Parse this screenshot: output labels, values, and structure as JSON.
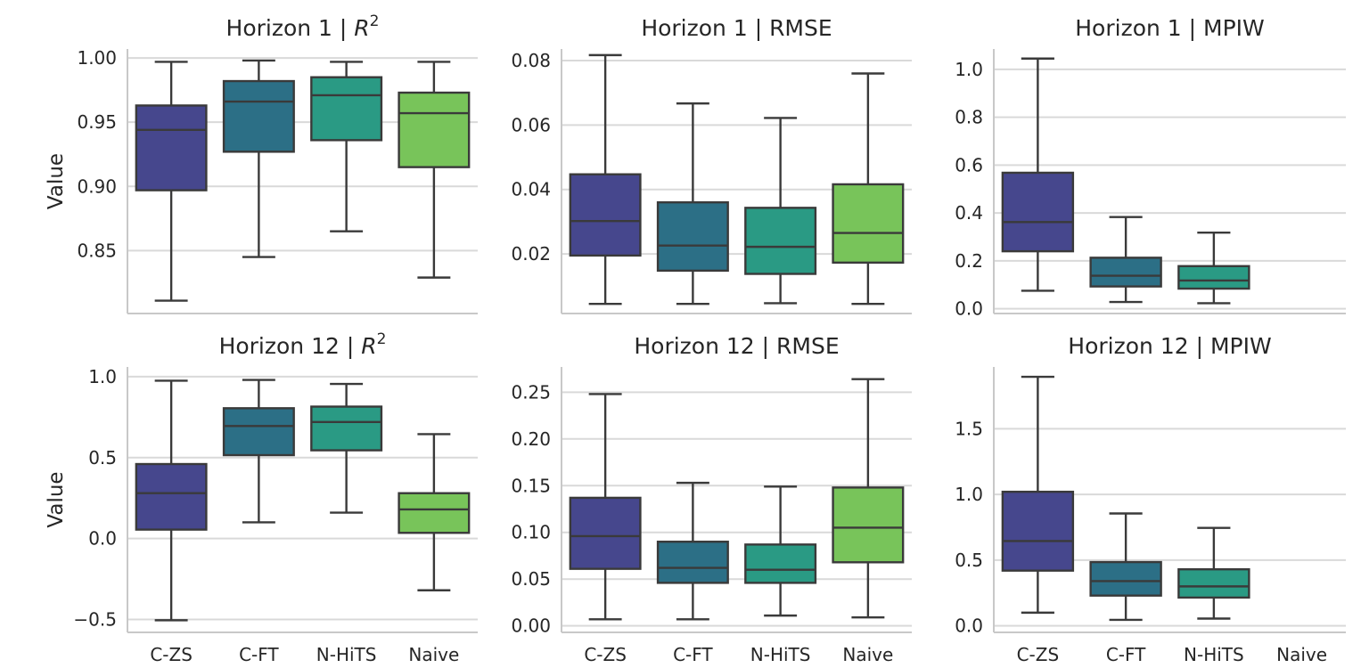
{
  "figure": {
    "categories": [
      "C-ZS",
      "C-FT",
      "N-HiTS",
      "Naive"
    ],
    "colors": [
      "#46478d",
      "#2c6f86",
      "#2a9a84",
      "#78c45a"
    ],
    "ylabel": "Value"
  },
  "chart_data": [
    {
      "type": "box",
      "title": "Horizon 1 | R²",
      "ylabel": "Value",
      "yticks": [
        "1.00",
        "0.95",
        "0.90",
        "0.85"
      ],
      "ylim": [
        0.801,
        1.007
      ],
      "categories": [
        "C-ZS",
        "C-FT",
        "N-HiTS",
        "Naive"
      ],
      "boxes": [
        {
          "min": 0.811,
          "q1": 0.897,
          "median": 0.944,
          "q3": 0.963,
          "max": 0.997
        },
        {
          "min": 0.845,
          "q1": 0.927,
          "median": 0.966,
          "q3": 0.982,
          "max": 0.998
        },
        {
          "min": 0.865,
          "q1": 0.936,
          "median": 0.971,
          "q3": 0.985,
          "max": 0.997
        },
        {
          "min": 0.829,
          "q1": 0.915,
          "median": 0.957,
          "q3": 0.973,
          "max": 0.997
        }
      ]
    },
    {
      "type": "box",
      "title": "Horizon 1 | RMSE",
      "ylabel": "",
      "yticks": [
        "0.08",
        "0.06",
        "0.04",
        "0.02"
      ],
      "ylim": [
        0.0015,
        0.0836
      ],
      "categories": [
        "C-ZS",
        "C-FT",
        "N-HiTS",
        "Naive"
      ],
      "boxes": [
        {
          "min": 0.0045,
          "q1": 0.0195,
          "median": 0.0302,
          "q3": 0.0447,
          "max": 0.0817
        },
        {
          "min": 0.0045,
          "q1": 0.0148,
          "median": 0.0226,
          "q3": 0.036,
          "max": 0.0667
        },
        {
          "min": 0.0047,
          "q1": 0.0138,
          "median": 0.0222,
          "q3": 0.0343,
          "max": 0.0622
        },
        {
          "min": 0.0045,
          "q1": 0.0173,
          "median": 0.0265,
          "q3": 0.0416,
          "max": 0.076
        }
      ]
    },
    {
      "type": "box",
      "title": "Horizon 1 | MPIW",
      "ylabel": "",
      "yticks": [
        "1.0",
        "0.8",
        "0.6",
        "0.4",
        "0.2",
        "0.0"
      ],
      "ylim": [
        -0.02,
        1.085
      ],
      "categories": [
        "C-ZS",
        "C-FT",
        "N-HiTS",
        "Naive"
      ],
      "boxes": [
        {
          "min": 0.075,
          "q1": 0.24,
          "median": 0.362,
          "q3": 0.568,
          "max": 1.045
        },
        {
          "min": 0.028,
          "q1": 0.093,
          "median": 0.138,
          "q3": 0.213,
          "max": 0.383
        },
        {
          "min": 0.023,
          "q1": 0.084,
          "median": 0.118,
          "q3": 0.178,
          "max": 0.318
        },
        null
      ]
    },
    {
      "type": "box",
      "title": "Horizon 12 | R²",
      "ylabel": "Value",
      "yticks": [
        "1.0",
        "0.5",
        "0.0",
        "−0.5"
      ],
      "ylim": [
        -0.58,
        1.06
      ],
      "categories": [
        "C-ZS",
        "C-FT",
        "N-HiTS",
        "Naive"
      ],
      "boxes": [
        {
          "min": -0.505,
          "q1": 0.055,
          "median": 0.28,
          "q3": 0.46,
          "max": 0.975
        },
        {
          "min": 0.1,
          "q1": 0.515,
          "median": 0.695,
          "q3": 0.805,
          "max": 0.98
        },
        {
          "min": 0.16,
          "q1": 0.545,
          "median": 0.72,
          "q3": 0.815,
          "max": 0.955
        },
        {
          "min": -0.32,
          "q1": 0.035,
          "median": 0.18,
          "q3": 0.28,
          "max": 0.645
        }
      ]
    },
    {
      "type": "box",
      "title": "Horizon 12 | RMSE",
      "ylabel": "",
      "yticks": [
        "0.25",
        "0.20",
        "0.15",
        "0.10",
        "0.05",
        "0.00"
      ],
      "ylim": [
        -0.007,
        0.277
      ],
      "categories": [
        "C-ZS",
        "C-FT",
        "N-HiTS",
        "Naive"
      ],
      "boxes": [
        {
          "min": 0.007,
          "q1": 0.061,
          "median": 0.096,
          "q3": 0.137,
          "max": 0.248
        },
        {
          "min": 0.007,
          "q1": 0.046,
          "median": 0.062,
          "q3": 0.09,
          "max": 0.153
        },
        {
          "min": 0.011,
          "q1": 0.046,
          "median": 0.06,
          "q3": 0.087,
          "max": 0.149
        },
        {
          "min": 0.009,
          "q1": 0.068,
          "median": 0.105,
          "q3": 0.148,
          "max": 0.264
        }
      ]
    },
    {
      "type": "box",
      "title": "Horizon 12 | MPIW",
      "ylabel": "",
      "yticks": [
        "1.5",
        "1.0",
        "0.5",
        "0.0"
      ],
      "ylim": [
        -0.05,
        1.97
      ],
      "categories": [
        "C-ZS",
        "C-FT",
        "N-HiTS",
        "Naive"
      ],
      "boxes": [
        {
          "min": 0.1,
          "q1": 0.42,
          "median": 0.645,
          "q3": 1.02,
          "max": 1.895
        },
        {
          "min": 0.045,
          "q1": 0.23,
          "median": 0.34,
          "q3": 0.485,
          "max": 0.855
        },
        {
          "min": 0.055,
          "q1": 0.215,
          "median": 0.3,
          "q3": 0.43,
          "max": 0.745
        },
        null
      ]
    }
  ]
}
